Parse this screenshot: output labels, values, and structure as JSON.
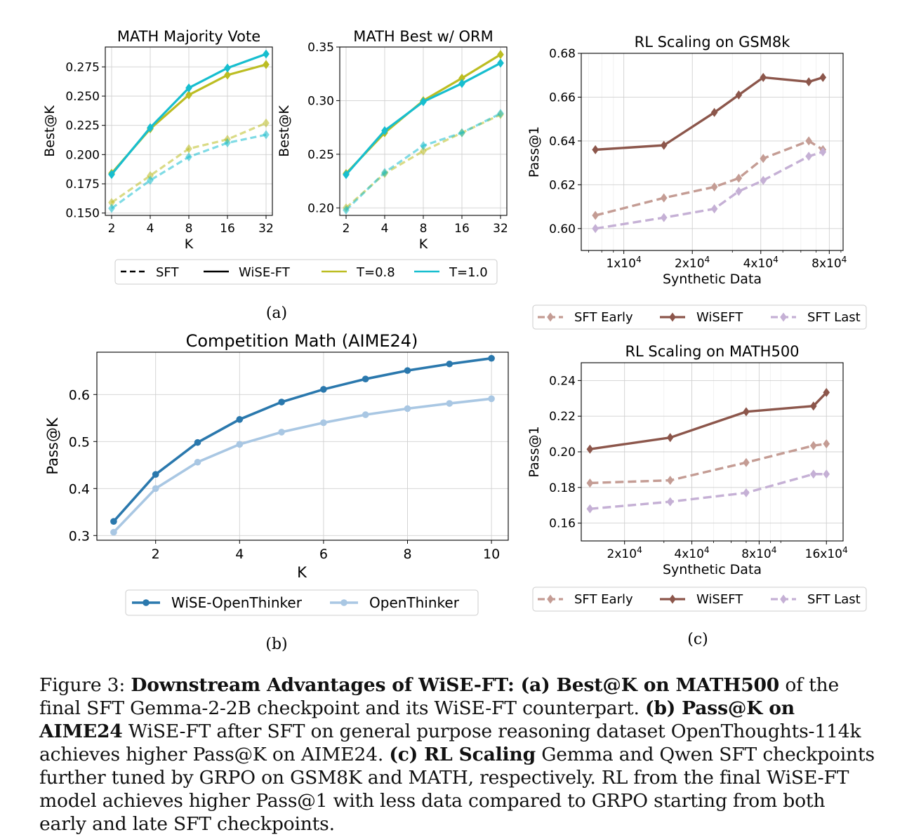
{
  "subfigure_labels": {
    "a": "(a)",
    "b": "(b)",
    "c": "(c)"
  },
  "legend_a": [
    {
      "label": "SFT",
      "style": "dashed",
      "color": "#000000"
    },
    {
      "label": "WiSE-FT",
      "style": "solid",
      "color": "#000000"
    },
    {
      "label": "T=0.8",
      "style": "solid",
      "color": "#bcbd22"
    },
    {
      "label": "T=1.0",
      "style": "solid",
      "color": "#17becf"
    }
  ],
  "legend_c": [
    {
      "label": "SFT Early",
      "color": "#c49c94",
      "style": "dashed"
    },
    {
      "label": "WiSEFT",
      "color": "#8c564b",
      "style": "solid"
    },
    {
      "label": "SFT Last",
      "color": "#c5b0d5",
      "style": "dashed"
    }
  ],
  "caption": {
    "figure": "Figure 3:",
    "b1": "Downstream Advantages of WiSE-FT: (a) Best@K on MATH500",
    "t1": " of the final SFT Gemma-2-2B checkpoint and its WiSE-FT counterpart. ",
    "b2": "(b) Pass@K on AIME24",
    "t2": " WiSE-FT after SFT on general purpose reasoning dataset OpenThoughts-114k achieves higher Pass@K on AIME24. ",
    "b3": "(c) RL Scaling",
    "t3": " Gemma and Qwen SFT checkpoints further tuned by GRPO on GSM8K and MATH, respectively. RL from the final WiSE-FT model achieves higher Pass@1 with less data compared to GRPO starting from both early and late SFT checkpoints."
  },
  "chart_data": [
    {
      "id": "a1",
      "type": "line",
      "title": "MATH Majority Vote",
      "xlabel": "K",
      "ylabel": "Best@K",
      "categories": [
        "2",
        "4",
        "8",
        "16",
        "32"
      ],
      "yticks": [
        "0.150",
        "0.175",
        "0.200",
        "0.225",
        "0.250",
        "0.275"
      ],
      "ylim": [
        0.148,
        0.292
      ],
      "series": [
        {
          "name": "SFT T=0.8",
          "color": "#bcbd22",
          "dashed": true,
          "faded": true,
          "values": [
            0.159,
            0.182,
            0.205,
            0.213,
            0.227
          ]
        },
        {
          "name": "SFT T=1.0",
          "color": "#17becf",
          "dashed": true,
          "faded": true,
          "values": [
            0.154,
            0.178,
            0.198,
            0.21,
            0.217
          ]
        },
        {
          "name": "WiSE-FT T=0.8",
          "color": "#bcbd22",
          "dashed": false,
          "faded": false,
          "values": [
            0.184,
            0.222,
            0.251,
            0.268,
            0.277
          ]
        },
        {
          "name": "WiSE-FT T=1.0",
          "color": "#17becf",
          "dashed": false,
          "faded": false,
          "values": [
            0.183,
            0.223,
            0.257,
            0.274,
            0.286
          ]
        }
      ]
    },
    {
      "id": "a2",
      "type": "line",
      "title": "MATH Best w/ ORM",
      "xlabel": "K",
      "ylabel": "Best@K",
      "categories": [
        "2",
        "4",
        "8",
        "16",
        "32"
      ],
      "yticks": [
        "0.20",
        "0.25",
        "0.30",
        "0.35"
      ],
      "ylim": [
        0.193,
        0.35
      ],
      "series": [
        {
          "name": "SFT T=0.8",
          "color": "#bcbd22",
          "dashed": true,
          "faded": true,
          "values": [
            0.2,
            0.232,
            0.253,
            0.27,
            0.287
          ]
        },
        {
          "name": "SFT T=1.0",
          "color": "#17becf",
          "dashed": true,
          "faded": true,
          "values": [
            0.198,
            0.233,
            0.258,
            0.27,
            0.288
          ]
        },
        {
          "name": "WiSE-FT T=0.8",
          "color": "#bcbd22",
          "dashed": false,
          "faded": false,
          "values": [
            0.232,
            0.27,
            0.3,
            0.321,
            0.343
          ]
        },
        {
          "name": "WiSE-FT T=1.0",
          "color": "#17becf",
          "dashed": false,
          "faded": false,
          "values": [
            0.231,
            0.272,
            0.299,
            0.316,
            0.335
          ]
        }
      ]
    },
    {
      "id": "b",
      "type": "line",
      "title": "Competition Math (AIME24)",
      "xlabel": "K",
      "ylabel": "Pass@K",
      "x": [
        1,
        2,
        3,
        4,
        5,
        6,
        7,
        8,
        9,
        10
      ],
      "xticks": [
        2,
        4,
        6,
        8,
        10
      ],
      "yticks": [
        0.3,
        0.4,
        0.5,
        0.6
      ],
      "ylim": [
        0.29,
        0.69
      ],
      "series": [
        {
          "name": "WiSE-OpenThinker",
          "color": "#2a78ad",
          "values": [
            0.33,
            0.43,
            0.498,
            0.547,
            0.584,
            0.611,
            0.633,
            0.651,
            0.665,
            0.677
          ]
        },
        {
          "name": "OpenThinker",
          "color": "#a9c7e3",
          "values": [
            0.307,
            0.4,
            0.456,
            0.494,
            0.52,
            0.54,
            0.557,
            0.57,
            0.581,
            0.591
          ]
        }
      ]
    },
    {
      "id": "c1",
      "type": "line",
      "title": "RL Scaling on GSM8k",
      "xlabel": "Synthetic Data",
      "ylabel": "Pass@1",
      "xscale": "log",
      "xticks": [
        {
          "value": 10000,
          "label": "1x10^4"
        },
        {
          "value": 20000,
          "label": "2x10^4"
        },
        {
          "value": 40000,
          "label": "4x10^4"
        },
        {
          "value": 80000,
          "label": "8x10^4"
        }
      ],
      "xlim": [
        6500,
        92000
      ],
      "yticks": [
        0.6,
        0.62,
        0.64,
        0.66,
        0.68
      ],
      "ylim": [
        0.59,
        0.68
      ],
      "series": [
        {
          "name": "WiSEFT",
          "color": "#8c564b",
          "dashed": false,
          "x": [
            7500,
            15000,
            25000,
            32000,
            41000,
            65000,
            75000
          ],
          "values": [
            0.636,
            0.638,
            0.653,
            0.661,
            0.669,
            0.667,
            0.669
          ]
        },
        {
          "name": "SFT Early",
          "color": "#c49c94",
          "dashed": true,
          "x": [
            7500,
            15000,
            25000,
            32000,
            41000,
            65000,
            75000
          ],
          "values": [
            0.606,
            0.614,
            0.619,
            0.623,
            0.632,
            0.64,
            0.636
          ]
        },
        {
          "name": "SFT Last",
          "color": "#c5b0d5",
          "dashed": true,
          "x": [
            7500,
            15000,
            25000,
            32000,
            41000,
            65000,
            75000
          ],
          "values": [
            0.6,
            0.605,
            0.609,
            0.617,
            0.622,
            0.633,
            0.635
          ]
        }
      ]
    },
    {
      "id": "c2",
      "type": "line",
      "title": "RL Scaling on MATH500",
      "xlabel": "Synthetic Data",
      "ylabel": "Pass@1",
      "xscale": "log",
      "xticks": [
        {
          "value": 20000,
          "label": "2x10^4"
        },
        {
          "value": 40000,
          "label": "4x10^4"
        },
        {
          "value": 80000,
          "label": "8x10^4"
        },
        {
          "value": 160000,
          "label": "16x10^4"
        }
      ],
      "xlim": [
        12800,
        190000
      ],
      "yticks": [
        0.16,
        0.18,
        0.2,
        0.22,
        0.24
      ],
      "ylim": [
        0.15,
        0.25
      ],
      "series": [
        {
          "name": "WiSEFT",
          "color": "#8c564b",
          "dashed": false,
          "x": [
            14000,
            32000,
            70000,
            140000,
            160000
          ],
          "values": [
            0.2015,
            0.208,
            0.2225,
            0.2257,
            0.2333
          ]
        },
        {
          "name": "SFT Early",
          "color": "#c49c94",
          "dashed": true,
          "x": [
            14000,
            32000,
            70000,
            140000,
            160000
          ],
          "values": [
            0.1825,
            0.184,
            0.194,
            0.2035,
            0.2045
          ]
        },
        {
          "name": "SFT Last",
          "color": "#c5b0d5",
          "dashed": true,
          "x": [
            14000,
            32000,
            70000,
            140000,
            160000
          ],
          "values": [
            0.168,
            0.172,
            0.177,
            0.1875,
            0.1875
          ]
        }
      ]
    }
  ]
}
